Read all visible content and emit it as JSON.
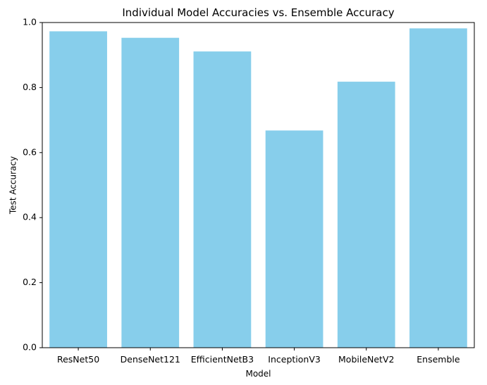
{
  "chart_data": {
    "type": "bar",
    "title": "Individual Model Accuracies vs. Ensemble Accuracy",
    "xlabel": "Model",
    "ylabel": "Test Accuracy",
    "categories": [
      "ResNet50",
      "DenseNet121",
      "EfficientNetB3",
      "InceptionV3",
      "MobileNetV2",
      "Ensemble"
    ],
    "values": [
      0.973,
      0.953,
      0.911,
      0.668,
      0.818,
      0.982
    ],
    "ylim": [
      0,
      1.0
    ],
    "yticks": [
      "0.0",
      "0.2",
      "0.4",
      "0.6",
      "0.8",
      "1.0"
    ],
    "bar_color": "#87CEEB",
    "grid": false,
    "legend": false
  }
}
